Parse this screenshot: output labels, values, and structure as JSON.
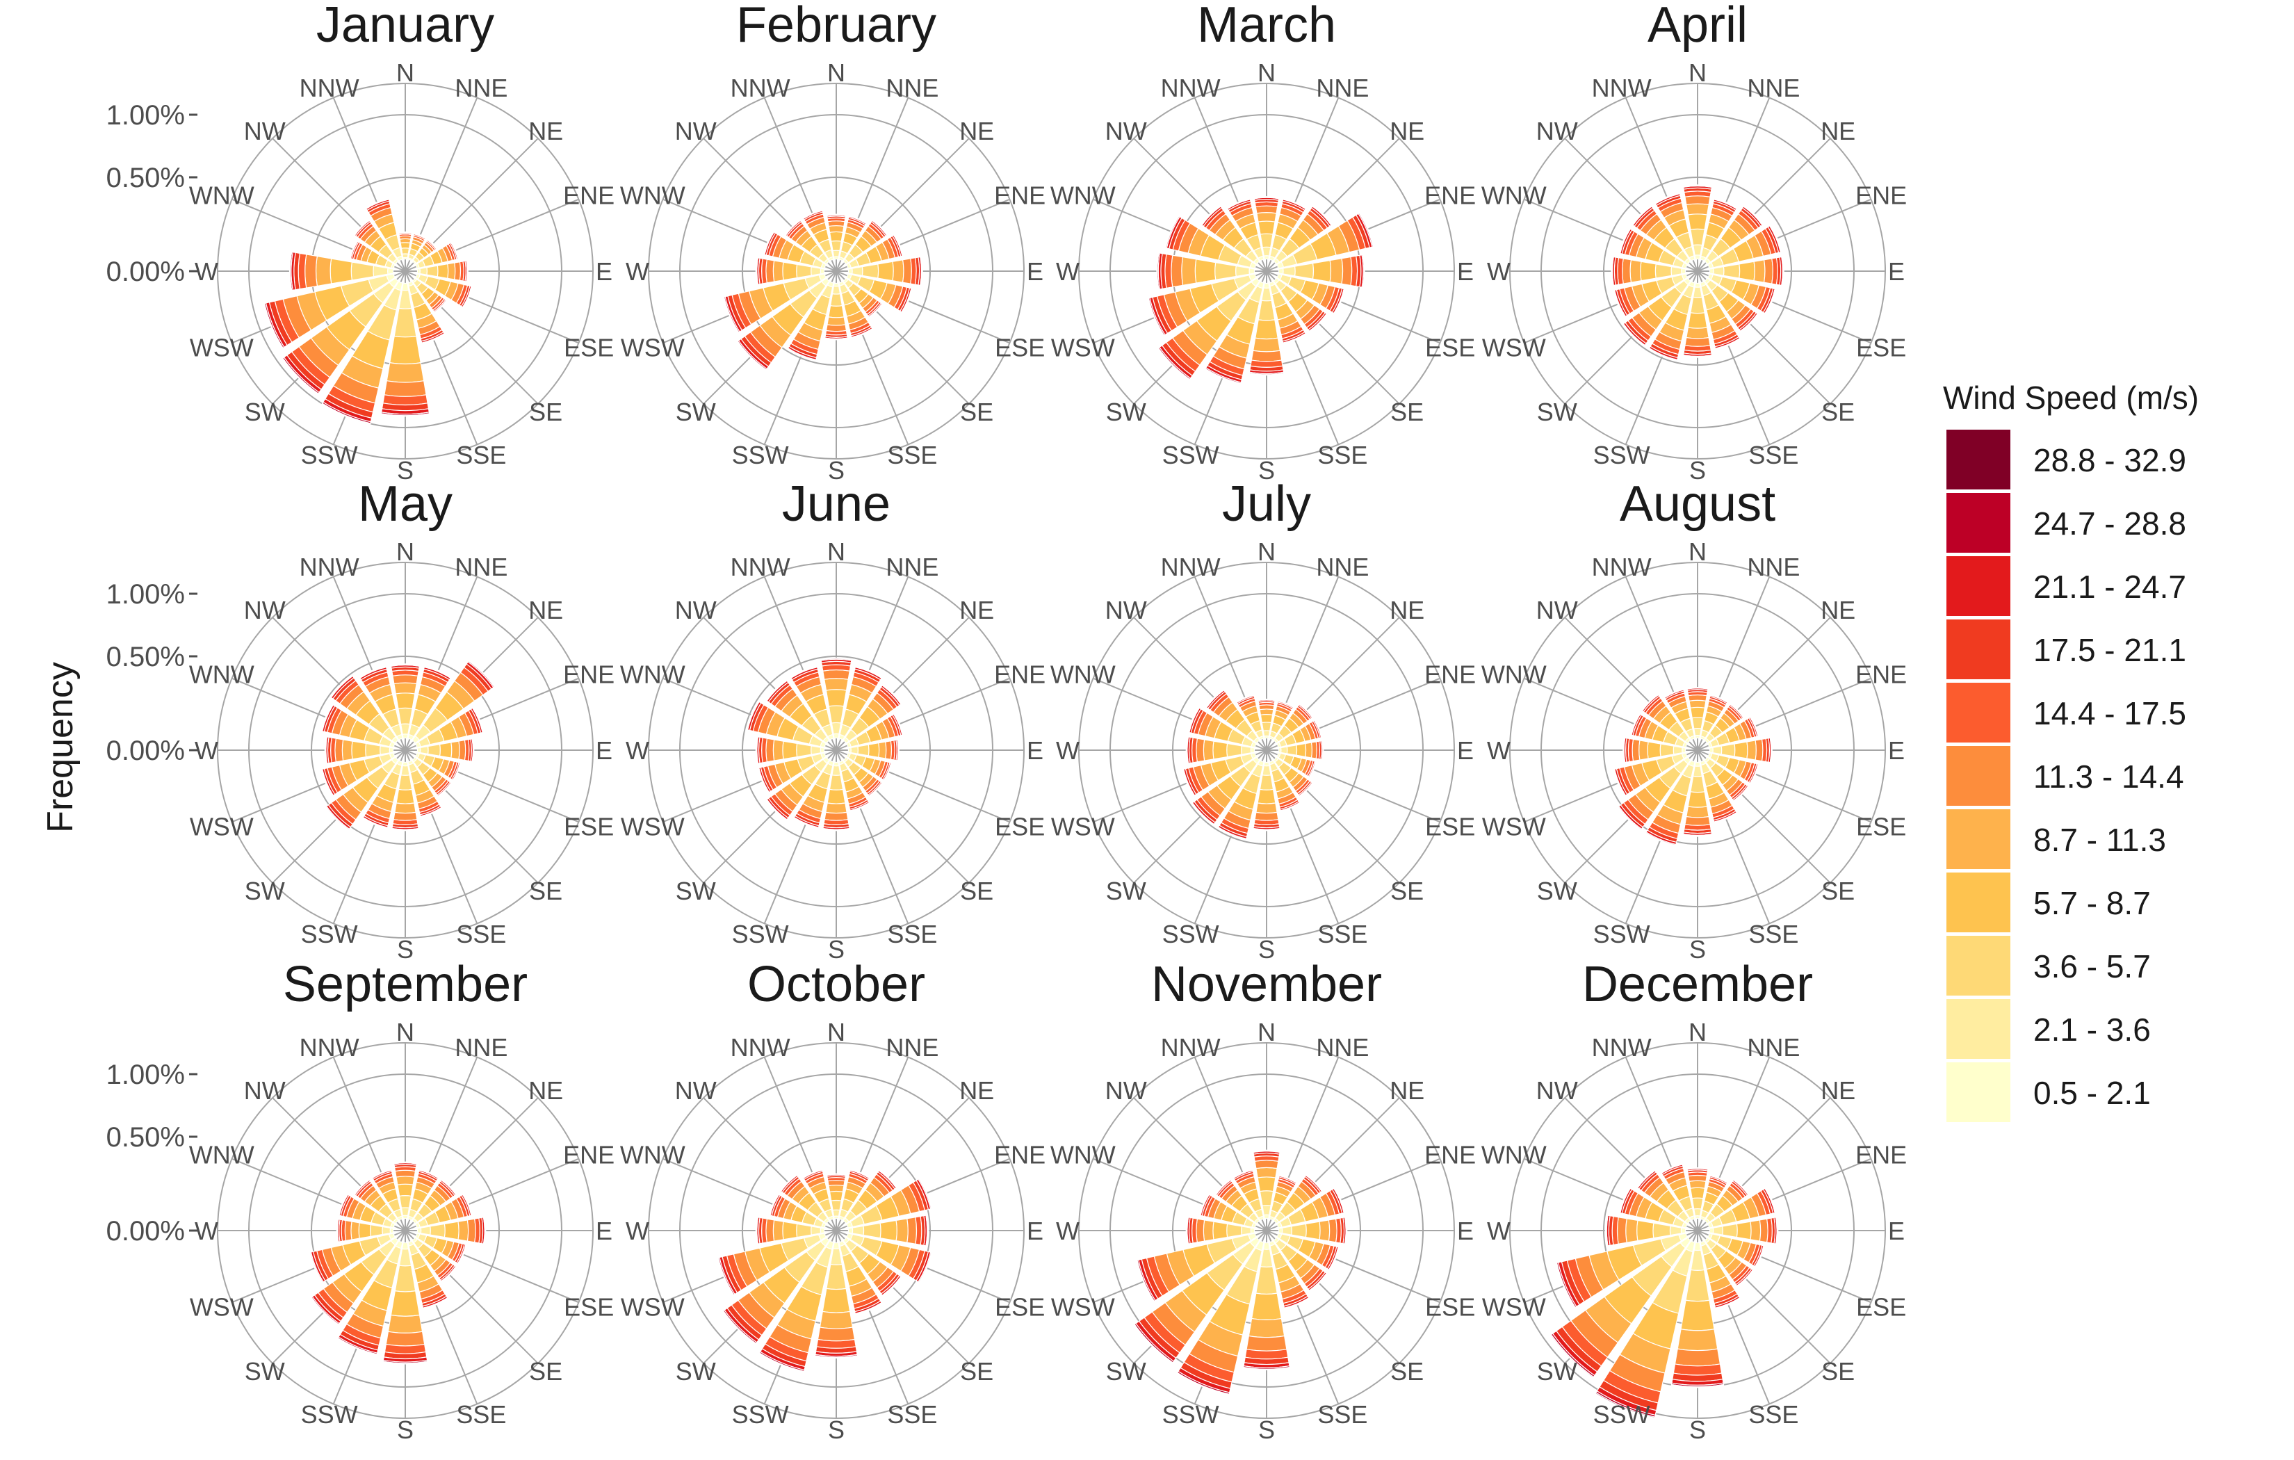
{
  "chart_data": {
    "type": "wind-rose",
    "ylabel": "Frequency",
    "directions": [
      "N",
      "NNE",
      "NE",
      "ENE",
      "E",
      "ESE",
      "SE",
      "SSE",
      "S",
      "SSW",
      "SW",
      "WSW",
      "W",
      "WNW",
      "NW",
      "NNW"
    ],
    "radial_ticks": [
      "0.00%",
      "0.50%",
      "1.00%"
    ],
    "radial_tick_values": [
      0,
      0.5,
      1.0
    ],
    "legend": {
      "title": "Wind Speed (m/s)",
      "bins": [
        "0.5 - 2.1",
        "2.1 - 3.6",
        "3.6 - 5.7",
        "5.7 - 8.7",
        "8.7 - 11.3",
        "11.3 - 14.4",
        "14.4 - 17.5",
        "17.5 - 21.1",
        "21.1 - 24.7",
        "24.7 - 28.8",
        "28.8 - 32.9"
      ],
      "colors": [
        "#ffffcc",
        "#ffeda0",
        "#fed976",
        "#fec34f",
        "#feb24c",
        "#fd8d3c",
        "#fc5c2e",
        "#f03b20",
        "#e31a1c",
        "#bd0026",
        "#800026"
      ]
    },
    "months": [
      {
        "name": "January",
        "totals": [
          0.05,
          0.05,
          0.05,
          0.18,
          0.25,
          0.3,
          0.15,
          0.35,
          0.95,
          1.05,
          1.0,
          0.95,
          0.7,
          0.2,
          0.25,
          0.35
        ]
      },
      {
        "name": "February",
        "totals": [
          0.2,
          0.2,
          0.25,
          0.3,
          0.45,
          0.38,
          0.2,
          0.3,
          0.3,
          0.5,
          0.75,
          0.7,
          0.4,
          0.35,
          0.25,
          0.25
        ]
      },
      {
        "name": "March",
        "totals": [
          0.35,
          0.35,
          0.4,
          0.65,
          0.55,
          0.4,
          0.35,
          0.35,
          0.6,
          0.7,
          0.85,
          0.75,
          0.65,
          0.6,
          0.4,
          0.35
        ]
      },
      {
        "name": "April",
        "totals": [
          0.45,
          0.35,
          0.4,
          0.45,
          0.45,
          0.4,
          0.35,
          0.4,
          0.45,
          0.5,
          0.5,
          0.45,
          0.45,
          0.4,
          0.4,
          0.4
        ]
      },
      {
        "name": "May",
        "totals": [
          0.45,
          0.45,
          0.65,
          0.4,
          0.3,
          0.2,
          0.2,
          0.3,
          0.4,
          0.4,
          0.55,
          0.45,
          0.4,
          0.45,
          0.5,
          0.45
        ]
      },
      {
        "name": "June",
        "totals": [
          0.5,
          0.45,
          0.4,
          0.3,
          0.25,
          0.2,
          0.2,
          0.25,
          0.4,
          0.4,
          0.45,
          0.4,
          0.4,
          0.5,
          0.45,
          0.45
        ]
      },
      {
        "name": "July",
        "totals": [
          0.15,
          0.15,
          0.2,
          0.2,
          0.2,
          0.15,
          0.2,
          0.25,
          0.4,
          0.5,
          0.5,
          0.45,
          0.4,
          0.4,
          0.35,
          0.2
        ]
      },
      {
        "name": "August",
        "totals": [
          0.25,
          0.2,
          0.2,
          0.25,
          0.35,
          0.25,
          0.25,
          0.35,
          0.45,
          0.55,
          0.55,
          0.45,
          0.35,
          0.3,
          0.3,
          0.25
        ]
      },
      {
        "name": "September",
        "totals": [
          0.3,
          0.25,
          0.25,
          0.3,
          0.4,
          0.25,
          0.25,
          0.4,
          0.85,
          0.8,
          0.7,
          0.55,
          0.3,
          0.3,
          0.25,
          0.25
        ]
      },
      {
        "name": "October",
        "totals": [
          0.2,
          0.25,
          0.35,
          0.55,
          0.5,
          0.55,
          0.4,
          0.45,
          0.8,
          0.95,
          0.9,
          0.75,
          0.4,
          0.3,
          0.3,
          0.25
        ]
      },
      {
        "name": "November",
        "totals": [
          0.4,
          0.2,
          0.3,
          0.4,
          0.4,
          0.35,
          0.35,
          0.4,
          0.9,
          1.15,
          1.1,
          0.85,
          0.4,
          0.3,
          0.25,
          0.25
        ]
      },
      {
        "name": "December",
        "totals": [
          0.25,
          0.2,
          0.25,
          0.4,
          0.4,
          0.3,
          0.3,
          0.4,
          1.05,
          1.35,
          1.25,
          0.95,
          0.5,
          0.4,
          0.35,
          0.3
        ]
      }
    ]
  }
}
